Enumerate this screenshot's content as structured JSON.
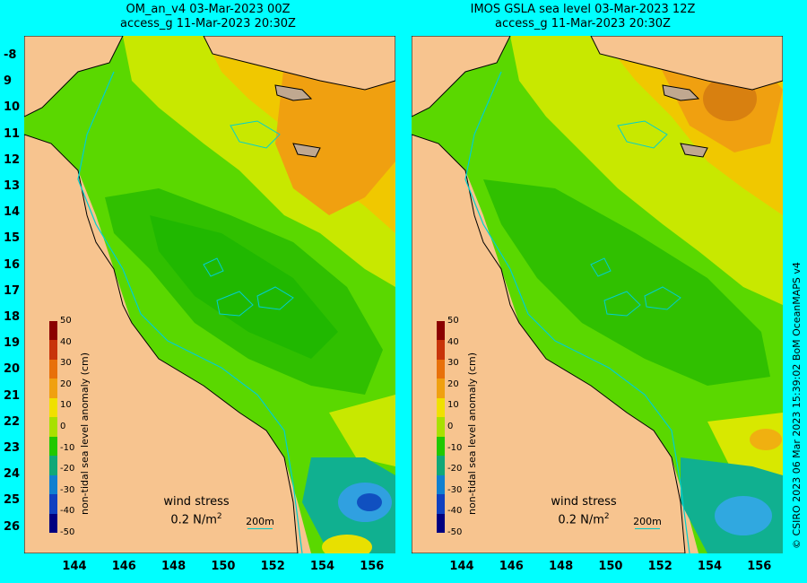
{
  "panels": [
    {
      "title_line1": "OM_an_v4  03-Mar-2023 00Z",
      "title_line2": "access_g 11-Mar-2023 20:30Z"
    },
    {
      "title_line1": "IMOS GSLA sea level  03-Mar-2023 12Z",
      "title_line2": "access_g 11-Mar-2023 20:30Z"
    }
  ],
  "y_labels": [
    "-8",
    "9",
    "10",
    "11",
    "12",
    "13",
    "14",
    "15",
    "16",
    "17",
    "18",
    "19",
    "20",
    "21",
    "22",
    "23",
    "24",
    "25",
    "26"
  ],
  "x_labels": [
    "144",
    "146",
    "148",
    "150",
    "152",
    "154",
    "156"
  ],
  "colorbar": {
    "title": "non-tidal sea level anomaly (cm)",
    "ticks": [
      "50",
      "40",
      "30",
      "20",
      "10",
      "0",
      "-10",
      "-20",
      "-30",
      "-40",
      "-50"
    ],
    "colors": [
      "#8b0000",
      "#c8340a",
      "#e8700a",
      "#f0a010",
      "#f0e000",
      "#a8e000",
      "#20c800",
      "#10a878",
      "#1080d0",
      "#1040c0",
      "#000080"
    ]
  },
  "wind_stress": {
    "line1": "wind stress",
    "line2": "0.2 N/m",
    "sup": "2"
  },
  "scale_label": "200m",
  "side_text": "© CSIRO 2023  06 Mar 2023 15:39:02 BoM OceanMAPS v4",
  "colors": {
    "background": "#00ffff",
    "land": "#f7c48f",
    "reef": "#44cccc"
  }
}
